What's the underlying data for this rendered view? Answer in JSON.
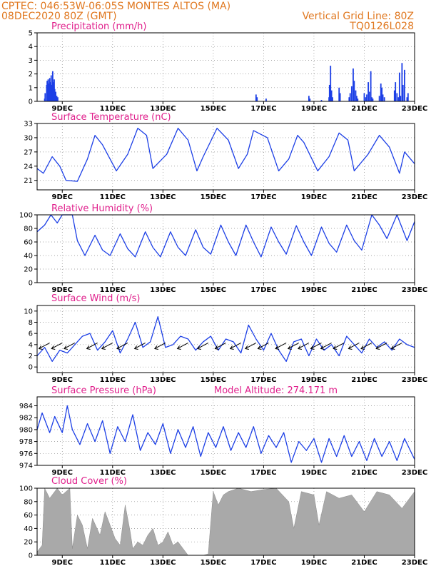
{
  "header": {
    "line1_left": "CPTEC:  046:53W-06:05S  MONTES ALTOS (MA)",
    "line2_left": "08DEC2020 80Z (GMT)",
    "line2_right": "Vertical Grid Line: 80Z",
    "line3_right": "TQ0126L028"
  },
  "colors": {
    "header": "#e07820",
    "title": "#e0208c",
    "line": "#1c3fe6",
    "bar": "#1c3fe6",
    "cloud": "#a9a9a9",
    "grid": "#888888"
  },
  "x_tick_labels": [
    "9DEC",
    "11DEC",
    "13DEC",
    "15DEC",
    "17DEC",
    "19DEC",
    "21DEC",
    "23DEC"
  ],
  "chart_data": [
    {
      "type": "bar",
      "title": "Precipitation (mm/h)",
      "ylim": [
        0,
        5
      ],
      "yticks": [
        0,
        1,
        2,
        3,
        4,
        5
      ],
      "x_days_from_8DEC": [
        0.3,
        0.32,
        0.38,
        0.4,
        0.44,
        0.46,
        0.5,
        0.52,
        0.56,
        0.58,
        0.62,
        0.64,
        0.68,
        0.7,
        0.74,
        0.78,
        0.82,
        8.7,
        8.74,
        9.1,
        10.8,
        10.84,
        11.3,
        11.6,
        11.62,
        11.66,
        11.7,
        11.74,
        12.0,
        12.04,
        12.4,
        12.44,
        12.5,
        12.56,
        12.6,
        12.66,
        12.7,
        12.74,
        13.0,
        13.06,
        13.1,
        13.16,
        13.2,
        13.26,
        13.3,
        13.34,
        13.6,
        13.66,
        13.7,
        13.74,
        13.8,
        14.2,
        14.24,
        14.3,
        14.36,
        14.4,
        14.44,
        14.5,
        14.54,
        14.6,
        14.7,
        14.74
      ],
      "values": [
        0.2,
        0.6,
        1.2,
        1.5,
        1.6,
        1.3,
        1.7,
        1.4,
        1.9,
        1.2,
        2.2,
        1.4,
        1.6,
        0.9,
        0.7,
        0.4,
        0.3,
        0.5,
        0.3,
        0.2,
        0.4,
        0.2,
        0.1,
        0.3,
        1.2,
        2.6,
        0.8,
        0.3,
        1.0,
        0.6,
        0.3,
        0.6,
        1.1,
        2.4,
        1.5,
        0.8,
        0.4,
        0.2,
        0.6,
        0.3,
        0.5,
        1.4,
        0.7,
        2.2,
        0.3,
        0.2,
        0.4,
        1.3,
        1.0,
        0.5,
        0.3,
        0.8,
        1.4,
        0.6,
        0.3,
        2.1,
        0.4,
        2.8,
        1.2,
        2.3,
        0.3,
        0.6
      ]
    },
    {
      "type": "line",
      "title": "Surface Temperature (nC)",
      "ylim": [
        19,
        33
      ],
      "yticks": [
        21,
        24,
        27,
        30,
        33
      ],
      "x_days_from_8DEC": [
        0.0,
        0.25,
        0.6,
        0.9,
        1.15,
        1.6,
        2.0,
        2.3,
        2.6,
        3.15,
        3.6,
        4.0,
        4.35,
        4.6,
        5.15,
        5.6,
        6.0,
        6.35,
        6.6,
        7.15,
        7.6,
        8.0,
        8.35,
        8.6,
        9.15,
        9.6,
        10.0,
        10.35,
        10.6,
        11.15,
        11.6,
        12.0,
        12.35,
        12.6,
        13.15,
        13.6,
        14.0,
        14.4,
        14.6,
        15.0
      ],
      "values": [
        23.5,
        22.5,
        26.0,
        24.0,
        21.0,
        20.8,
        25.5,
        30.5,
        28.5,
        23.0,
        26.5,
        32.0,
        30.5,
        23.5,
        26.5,
        32.0,
        29.5,
        23.0,
        26.0,
        32.0,
        29.5,
        23.5,
        26.5,
        31.5,
        30.0,
        23.0,
        25.5,
        30.5,
        29.0,
        23.0,
        26.0,
        31.0,
        29.5,
        23.0,
        26.5,
        30.5,
        28.0,
        22.5,
        27.0,
        24.5
      ]
    },
    {
      "type": "line",
      "title": "Relative Humidity (%)",
      "ylim": [
        0,
        100
      ],
      "yticks": [
        0,
        20,
        40,
        60,
        80,
        100
      ],
      "x_days_from_8DEC": [
        0.0,
        0.3,
        0.55,
        0.8,
        1.0,
        1.4,
        1.6,
        1.9,
        2.3,
        2.6,
        2.9,
        3.3,
        3.6,
        3.9,
        4.3,
        4.6,
        4.9,
        5.3,
        5.6,
        5.9,
        6.3,
        6.6,
        6.9,
        7.3,
        7.6,
        7.9,
        8.3,
        8.6,
        8.9,
        9.3,
        9.6,
        9.9,
        10.3,
        10.6,
        10.9,
        11.3,
        11.6,
        11.9,
        12.3,
        12.6,
        12.9,
        13.3,
        13.6,
        13.9,
        14.3,
        14.7,
        15.0
      ],
      "values": [
        75,
        85,
        100,
        88,
        100,
        100,
        62,
        40,
        70,
        48,
        40,
        72,
        50,
        38,
        75,
        52,
        38,
        75,
        52,
        40,
        78,
        52,
        42,
        85,
        60,
        40,
        85,
        60,
        38,
        82,
        60,
        42,
        84,
        60,
        40,
        82,
        58,
        45,
        85,
        62,
        48,
        100,
        85,
        65,
        100,
        62,
        90
      ]
    },
    {
      "type": "line",
      "title": "Surface Wind (m/s)",
      "ylim": [
        -1,
        11
      ],
      "yticks": [
        0,
        2,
        4,
        6,
        8,
        10
      ],
      "x_days_from_8DEC": [
        0.0,
        0.3,
        0.6,
        0.9,
        1.2,
        1.5,
        1.8,
        2.1,
        2.4,
        2.7,
        3.0,
        3.3,
        3.6,
        3.9,
        4.2,
        4.5,
        4.8,
        5.1,
        5.4,
        5.7,
        6.0,
        6.3,
        6.6,
        6.9,
        7.2,
        7.5,
        7.8,
        8.1,
        8.4,
        8.7,
        9.0,
        9.3,
        9.6,
        9.9,
        10.2,
        10.5,
        10.8,
        11.1,
        11.4,
        11.7,
        12.0,
        12.3,
        12.6,
        12.9,
        13.2,
        13.5,
        13.8,
        14.1,
        14.4,
        14.7,
        15.0
      ],
      "values": [
        2,
        3.5,
        1,
        3,
        2.5,
        4,
        5.5,
        6,
        3,
        4.5,
        6.5,
        2.5,
        5,
        8,
        3.5,
        4.5,
        9,
        3.5,
        4,
        5.5,
        5,
        3,
        4.5,
        5.5,
        3,
        5,
        4.5,
        2.5,
        7.5,
        5,
        3,
        6,
        3,
        1,
        4.5,
        5,
        2,
        5,
        3,
        4,
        2,
        5.5,
        4,
        2.5,
        5,
        3.5,
        4.5,
        3,
        5,
        4,
        3.5
      ],
      "arrows_x_days_from_8DEC": [
        0.5,
        1.0,
        1.5,
        2.4,
        3.0,
        3.6,
        4.3,
        5.1,
        6.0,
        6.8,
        7.5,
        8.1,
        8.7,
        9.2,
        9.9,
        10.4,
        10.8,
        11.3,
        11.7,
        12.2,
        12.8,
        13.3,
        13.9,
        14.5
      ]
    },
    {
      "type": "line",
      "title": "Surface Pressure (hPa)",
      "subtitle": "Model Altitude: 274.171 m",
      "ylim": [
        974,
        985.5
      ],
      "yticks": [
        974,
        976,
        978,
        980,
        982,
        984
      ],
      "x_days_from_8DEC": [
        0.0,
        0.2,
        0.5,
        0.7,
        1.0,
        1.2,
        1.4,
        1.7,
        2.0,
        2.3,
        2.6,
        2.9,
        3.2,
        3.5,
        3.8,
        4.1,
        4.4,
        4.7,
        5.0,
        5.3,
        5.6,
        5.9,
        6.2,
        6.5,
        6.8,
        7.1,
        7.4,
        7.7,
        8.0,
        8.3,
        8.6,
        8.9,
        9.2,
        9.5,
        9.8,
        10.1,
        10.4,
        10.7,
        11.0,
        11.3,
        11.6,
        11.9,
        12.2,
        12.5,
        12.8,
        13.1,
        13.4,
        13.7,
        14.0,
        14.3,
        14.6,
        15.0
      ],
      "values": [
        980,
        982.8,
        979.5,
        982.2,
        979.5,
        984,
        980,
        977.5,
        981,
        978,
        981.5,
        976,
        980.5,
        978,
        982.5,
        976.5,
        979.5,
        977.5,
        981,
        976,
        980,
        977,
        980.5,
        975.5,
        979.5,
        977,
        980.5,
        976.5,
        979.5,
        977,
        980.5,
        976,
        979,
        977,
        979.5,
        974.5,
        978,
        976.5,
        978.5,
        974.5,
        978.5,
        975.5,
        979,
        975.5,
        978,
        974.8,
        978.5,
        975.5,
        978,
        974.8,
        978.5,
        975
      ]
    },
    {
      "type": "area",
      "title": "Cloud Cover (%)",
      "ylim": [
        0,
        100
      ],
      "yticks": [
        0,
        20,
        40,
        60,
        80,
        100
      ],
      "x_days_from_8DEC": [
        0.0,
        0.2,
        0.3,
        0.5,
        0.8,
        1.0,
        1.3,
        1.4,
        1.6,
        1.8,
        2.0,
        2.2,
        2.5,
        2.7,
        2.9,
        3.1,
        3.3,
        3.5,
        3.7,
        3.8,
        4.0,
        4.2,
        4.4,
        4.6,
        4.8,
        5.0,
        5.2,
        5.4,
        5.6,
        5.8,
        6.0,
        6.2,
        6.6,
        6.8,
        7.0,
        7.2,
        7.4,
        7.6,
        8.0,
        8.5,
        9.0,
        9.5,
        10.0,
        10.2,
        10.5,
        11.0,
        11.2,
        11.5,
        12.0,
        12.5,
        13.0,
        13.5,
        14.0,
        14.5,
        15.0
      ],
      "values": [
        5,
        15,
        100,
        85,
        100,
        90,
        100,
        10,
        60,
        45,
        10,
        55,
        30,
        65,
        45,
        25,
        15,
        75,
        35,
        10,
        20,
        15,
        30,
        40,
        15,
        20,
        35,
        15,
        20,
        10,
        0,
        0,
        0,
        2,
        95,
        75,
        90,
        95,
        100,
        95,
        98,
        100,
        80,
        40,
        95,
        90,
        45,
        95,
        85,
        90,
        65,
        95,
        90,
        70,
        95
      ]
    }
  ]
}
